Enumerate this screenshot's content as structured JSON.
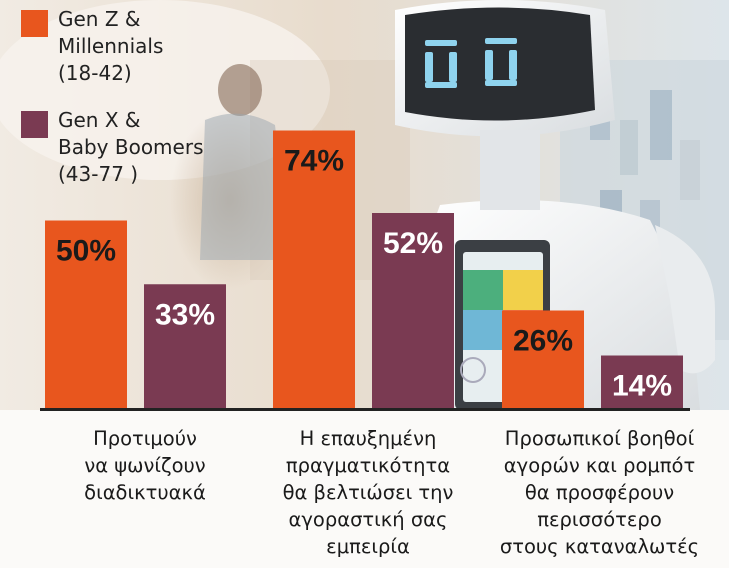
{
  "colors": {
    "gen_z": "#e8561e",
    "gen_x": "#7a3a52",
    "axis": "#222222"
  },
  "legend": {
    "position": "top-left",
    "items": [
      {
        "label": "Gen Z &\nMillennials\n(18-42)",
        "color": "#e8561e"
      },
      {
        "label": "Gen X &\nBaby Boomers\n(43-77 )",
        "color": "#7a3a52"
      }
    ]
  },
  "chart_data": {
    "type": "bar",
    "title": "",
    "xlabel": "",
    "ylabel": "",
    "ylim": [
      0,
      100
    ],
    "grid": false,
    "categories": [
      "Προτιμούν\nνα ψωνίζουν\nδιαδικτυακά",
      "Η επαυξημένη\nπραγματικότητα\nθα βελτιώσει την\nαγοραστική σας\nεμπειρία",
      "Προσωπικοί βοηθοί\nαγορών και ρομπότ\nθα προσφέρουν\nπερισσότερο\nστους καταναλωτές"
    ],
    "series": [
      {
        "name": "Gen Z & Millennials (18-42)",
        "values": [
          50,
          74,
          26
        ],
        "labels": [
          "50%",
          "74%",
          "26%"
        ]
      },
      {
        "name": "Gen X & Baby Boomers (43-77 )",
        "values": [
          33,
          52,
          14
        ],
        "labels": [
          "33%",
          "52%",
          "14%"
        ]
      }
    ]
  }
}
